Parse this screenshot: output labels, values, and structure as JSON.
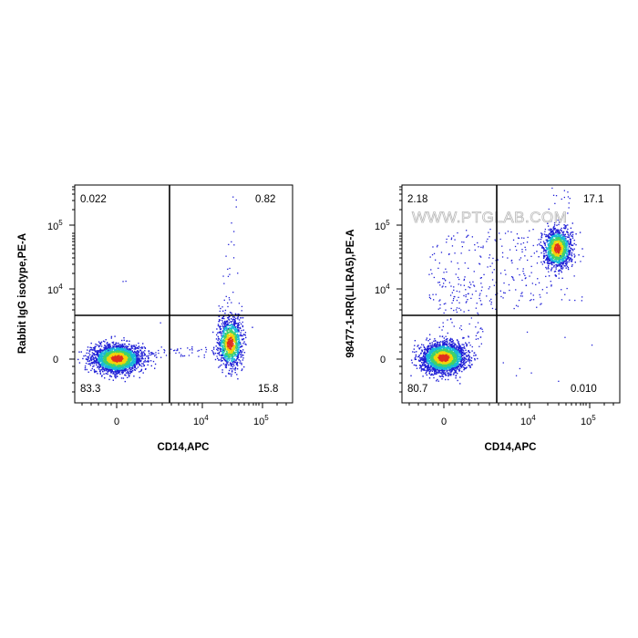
{
  "watermark": "WWW.PTGLAB.COM",
  "colors": {
    "density_low": "#1f1fd6",
    "density_mid_low": "#17b8d8",
    "density_mid": "#3fd26a",
    "density_high": "#f2d40a",
    "density_peak": "#e0301e",
    "gate": "#000000"
  },
  "chart_data": [
    {
      "type": "scatter",
      "style": "density-colored flow cytometry dot plot",
      "xlabel": "CD14,APC",
      "ylabel": "Rabbit IgG isotype,PE-A",
      "x_ticks": [
        "0",
        "10^4",
        "10^5"
      ],
      "y_ticks": [
        "0",
        "10^4",
        "10^5"
      ],
      "quadrants": {
        "upper_left": "0.022",
        "upper_right": "0.82",
        "lower_left": "83.3",
        "lower_right": "15.8"
      },
      "populations": [
        {
          "x": "0",
          "y": "0",
          "share": "lower-left",
          "density": "peak"
        },
        {
          "x": "3.2e4",
          "y": "0",
          "share": "lower-right",
          "density": "high"
        }
      ]
    },
    {
      "type": "scatter",
      "style": "density-colored flow cytometry dot plot",
      "xlabel": "CD14,APC",
      "ylabel": "98477-1-RR(LILRA5),PE-A",
      "x_ticks": [
        "0",
        "10^4",
        "10^5"
      ],
      "y_ticks": [
        "0",
        "10^4",
        "10^5"
      ],
      "quadrants": {
        "upper_left": "2.18",
        "upper_right": "17.1",
        "lower_left": "80.7",
        "lower_right": "0.010"
      },
      "populations": [
        {
          "x": "0",
          "y": "0",
          "share": "lower-left",
          "density": "peak"
        },
        {
          "x": "3.2e4",
          "y": "3.5e4",
          "share": "upper-right",
          "density": "high"
        }
      ]
    }
  ]
}
